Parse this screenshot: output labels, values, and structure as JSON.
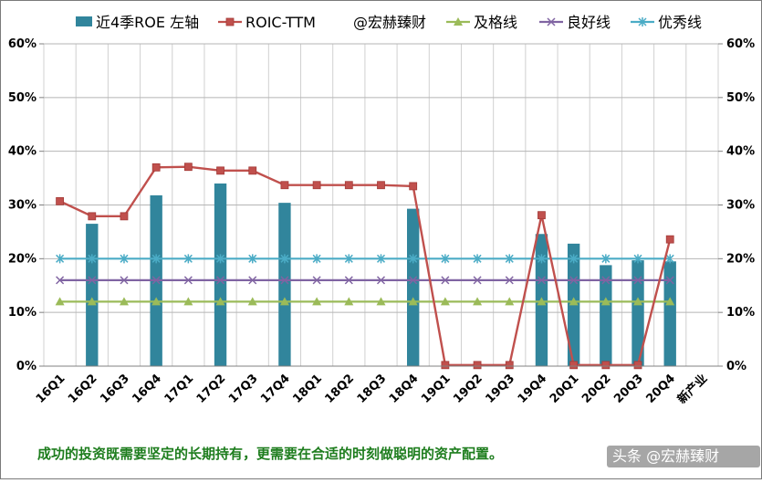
{
  "chart_data": {
    "type": "bar",
    "categories": [
      "16Q1",
      "16Q2",
      "16Q3",
      "16Q4",
      "17Q1",
      "17Q2",
      "17Q3",
      "17Q4",
      "18Q1",
      "18Q2",
      "18Q3",
      "18Q4",
      "19Q1",
      "19Q2",
      "19Q3",
      "19Q4",
      "20Q1",
      "20Q2",
      "20Q3",
      "20Q4",
      "新产业"
    ],
    "ylim": [
      0,
      60
    ],
    "yticks": [
      "0%",
      "10%",
      "20%",
      "30%",
      "40%",
      "50%",
      "60%"
    ],
    "grid": true,
    "legend_position": "top",
    "series": [
      {
        "name": "近4季ROE 左轴",
        "kind": "bar",
        "color": "#31859c",
        "values": [
          null,
          26.5,
          null,
          31.8,
          null,
          34.0,
          null,
          30.4,
          null,
          null,
          null,
          29.3,
          null,
          null,
          null,
          24.6,
          22.8,
          18.8,
          19.7,
          19.5,
          null
        ]
      },
      {
        "name": "ROIC-TTM",
        "kind": "line",
        "marker": "square",
        "color": "#c0504d",
        "values": [
          30.7,
          27.9,
          27.9,
          37.0,
          37.1,
          36.4,
          36.4,
          33.7,
          33.7,
          33.7,
          33.7,
          33.5,
          0.2,
          0.2,
          0.2,
          28.1,
          0.2,
          0.2,
          0.2,
          23.6,
          null
        ]
      },
      {
        "name": "及格线",
        "kind": "line",
        "marker": "triangle",
        "color": "#9bbb59",
        "values": [
          12,
          12,
          12,
          12,
          12,
          12,
          12,
          12,
          12,
          12,
          12,
          12,
          12,
          12,
          12,
          12,
          12,
          12,
          12,
          12,
          null
        ]
      },
      {
        "name": "良好线",
        "kind": "line",
        "marker": "x",
        "color": "#8064a2",
        "values": [
          16,
          16,
          16,
          16,
          16,
          16,
          16,
          16,
          16,
          16,
          16,
          16,
          16,
          16,
          16,
          16,
          16,
          16,
          16,
          16,
          null
        ]
      },
      {
        "name": "优秀线",
        "kind": "line",
        "marker": "star",
        "color": "#4bacc6",
        "values": [
          20,
          20,
          20,
          20,
          20,
          20,
          20,
          20,
          20,
          20,
          20,
          20,
          20,
          20,
          20,
          20,
          20,
          20,
          20,
          20,
          null
        ]
      }
    ],
    "legend_extra": "@宏赫臻财"
  },
  "caption": "成功的投资既需要坚定的长期持有，更需要在合适的时刻做聪明的资产配置。",
  "watermark": "头条 @宏赫臻财"
}
